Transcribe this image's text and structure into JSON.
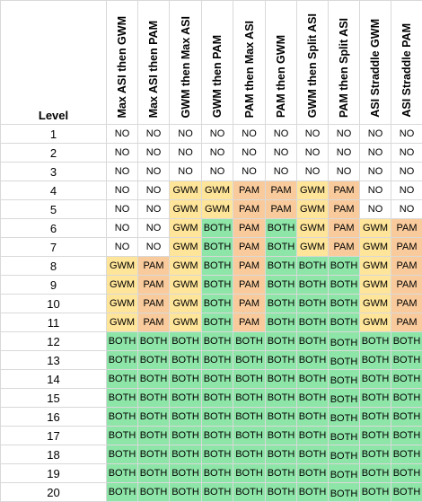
{
  "table": {
    "level_header": "Level",
    "columns": [
      "Max ASI then GWM",
      "Max ASI then PAM",
      "GWM then Max ASI",
      "GWM then PAM",
      "PAM then Max ASI",
      "PAM then GWM",
      "GWM then Split ASI",
      "PAM then Split ASI",
      "ASI Straddle GWM",
      "ASI Straddle PAM"
    ],
    "rows": [
      {
        "level": "1",
        "cells": [
          "NO",
          "NO",
          "NO",
          "NO",
          "NO",
          "NO",
          "NO",
          "NO",
          "NO",
          "NO"
        ]
      },
      {
        "level": "2",
        "cells": [
          "NO",
          "NO",
          "NO",
          "NO",
          "NO",
          "NO",
          "NO",
          "NO",
          "NO",
          "NO"
        ]
      },
      {
        "level": "3",
        "cells": [
          "NO",
          "NO",
          "NO",
          "NO",
          "NO",
          "NO",
          "NO",
          "NO",
          "NO",
          "NO"
        ]
      },
      {
        "level": "4",
        "cells": [
          "NO",
          "NO",
          "GWM",
          "GWM",
          "PAM",
          "PAM",
          "GWM",
          "PAM",
          "NO",
          "NO"
        ]
      },
      {
        "level": "5",
        "cells": [
          "NO",
          "NO",
          "GWM",
          "GWM",
          "PAM",
          "PAM",
          "GWM",
          "PAM",
          "NO",
          "NO"
        ]
      },
      {
        "level": "6",
        "cells": [
          "NO",
          "NO",
          "GWM",
          "BOTH",
          "PAM",
          "BOTH",
          "GWM",
          "PAM",
          "GWM",
          "PAM"
        ]
      },
      {
        "level": "7",
        "cells": [
          "NO",
          "NO",
          "GWM",
          "BOTH",
          "PAM",
          "BOTH",
          "GWM",
          "PAM",
          "GWM",
          "PAM"
        ]
      },
      {
        "level": "8",
        "cells": [
          "GWM",
          "PAM",
          "GWM",
          "BOTH",
          "PAM",
          "BOTH",
          "BOTH",
          "BOTH",
          "GWM",
          "PAM"
        ]
      },
      {
        "level": "9",
        "cells": [
          "GWM",
          "PAM",
          "GWM",
          "BOTH",
          "PAM",
          "BOTH",
          "BOTH",
          "BOTH",
          "GWM",
          "PAM"
        ]
      },
      {
        "level": "10",
        "cells": [
          "GWM",
          "PAM",
          "GWM",
          "BOTH",
          "PAM",
          "BOTH",
          "BOTH",
          "BOTH",
          "GWM",
          "PAM"
        ]
      },
      {
        "level": "11",
        "cells": [
          "GWM",
          "PAM",
          "GWM",
          "BOTH",
          "PAM",
          "BOTH",
          "BOTH",
          "BOTH",
          "GWM",
          "PAM"
        ]
      },
      {
        "level": "12",
        "cells": [
          "BOTH",
          "BOTH",
          "BOTH",
          "BOTH",
          "BOTH",
          "BOTH",
          "BOTH",
          "BOTH",
          "BOTH",
          "BOTH"
        ]
      },
      {
        "level": "13",
        "cells": [
          "BOTH",
          "BOTH",
          "BOTH",
          "BOTH",
          "BOTH",
          "BOTH",
          "BOTH",
          "BOTH",
          "BOTH",
          "BOTH"
        ]
      },
      {
        "level": "14",
        "cells": [
          "BOTH",
          "BOTH",
          "BOTH",
          "BOTH",
          "BOTH",
          "BOTH",
          "BOTH",
          "BOTH",
          "BOTH",
          "BOTH"
        ]
      },
      {
        "level": "15",
        "cells": [
          "BOTH",
          "BOTH",
          "BOTH",
          "BOTH",
          "BOTH",
          "BOTH",
          "BOTH",
          "BOTH",
          "BOTH",
          "BOTH"
        ]
      },
      {
        "level": "16",
        "cells": [
          "BOTH",
          "BOTH",
          "BOTH",
          "BOTH",
          "BOTH",
          "BOTH",
          "BOTH",
          "BOTH",
          "BOTH",
          "BOTH"
        ]
      },
      {
        "level": "17",
        "cells": [
          "BOTH",
          "BOTH",
          "BOTH",
          "BOTH",
          "BOTH",
          "BOTH",
          "BOTH",
          "BOTH",
          "BOTH",
          "BOTH"
        ]
      },
      {
        "level": "18",
        "cells": [
          "BOTH",
          "BOTH",
          "BOTH",
          "BOTH",
          "BOTH",
          "BOTH",
          "BOTH",
          "BOTH",
          "BOTH",
          "BOTH"
        ]
      },
      {
        "level": "19",
        "cells": [
          "BOTH",
          "BOTH",
          "BOTH",
          "BOTH",
          "BOTH",
          "BOTH",
          "BOTH",
          "BOTH",
          "BOTH",
          "BOTH"
        ]
      },
      {
        "level": "20",
        "cells": [
          "BOTH",
          "BOTH",
          "BOTH",
          "BOTH",
          "BOTH",
          "BOTH",
          "BOTH",
          "BOTH",
          "BOTH",
          "BOTH"
        ]
      }
    ]
  },
  "colors": {
    "NO": "#ffffff",
    "GWM": "#ffe599",
    "PAM": "#f9cb9c",
    "BOTH": "#8ee5a8",
    "gridline": "#d9d9d9"
  }
}
